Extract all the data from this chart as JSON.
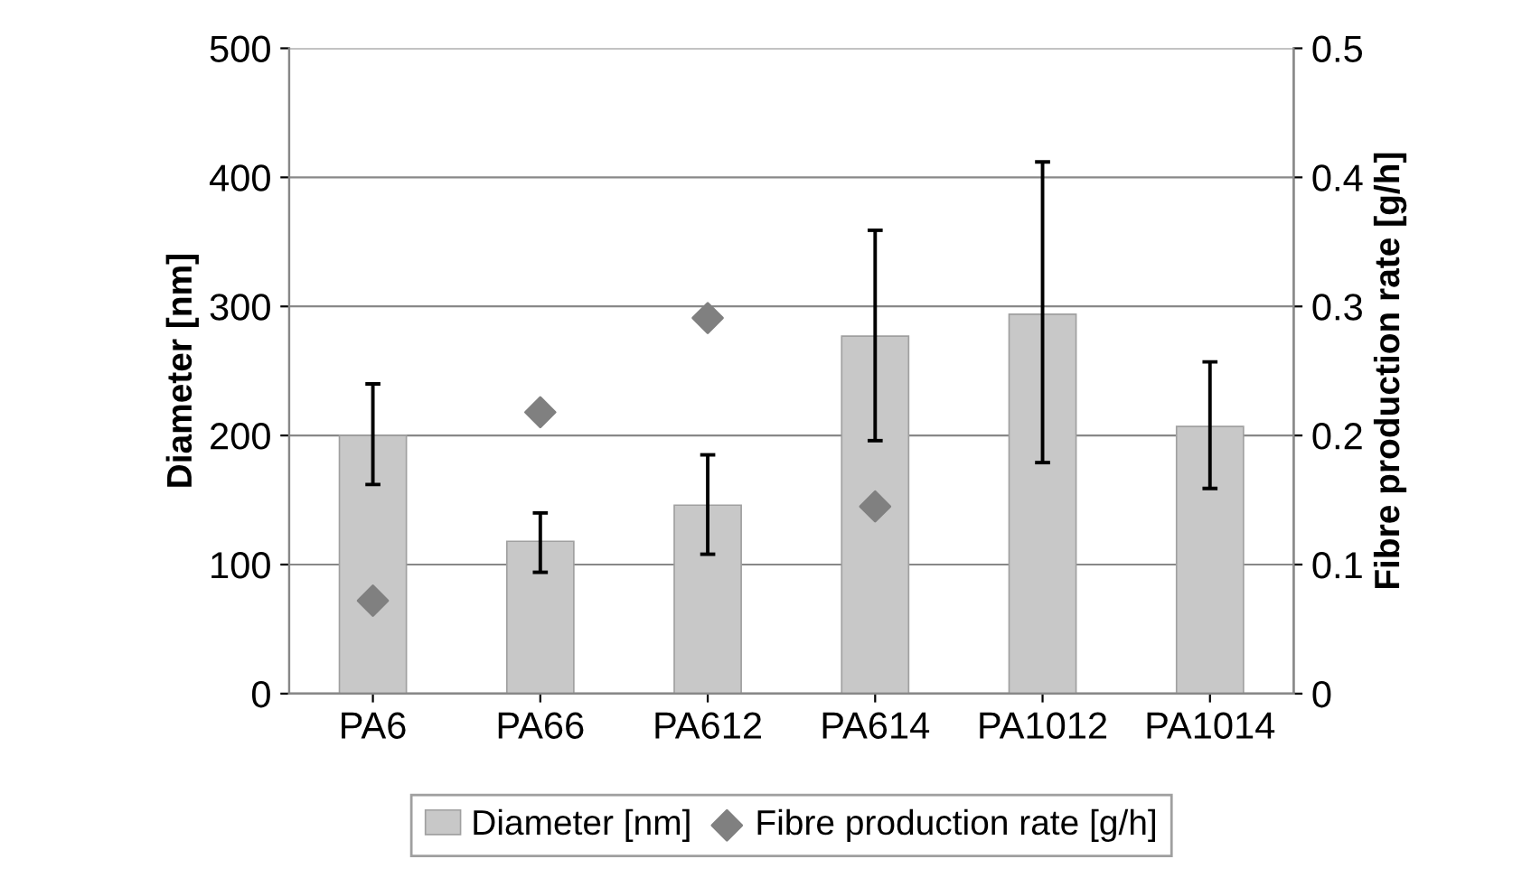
{
  "chart_data": {
    "type": "bar",
    "ylabel": "Diameter [nm]",
    "y2label": "Fibre production rate [g/h]",
    "categories": [
      "PA6",
      "PA66",
      "PA612",
      "PA614",
      "PA1012",
      "PA1014"
    ],
    "series": [
      {
        "name": "Diameter [nm]",
        "color": "#c8c8c8",
        "values": [
          200,
          118,
          146,
          277,
          294,
          207
        ],
        "errors": [
          [
            162,
            240
          ],
          [
            94,
            140
          ],
          [
            108,
            185
          ],
          [
            196,
            359
          ],
          [
            179,
            412
          ],
          [
            159,
            257
          ]
        ]
      },
      {
        "name": "Fibre production rate [g/h]",
        "type": "scatter",
        "axis": "y2",
        "color": "#808080",
        "marker": "diamond",
        "values": [
          0.072,
          0.218,
          0.291,
          0.145,
          null,
          null
        ]
      }
    ],
    "ylim": [
      0,
      500
    ],
    "yticks": [
      0,
      100,
      200,
      300,
      400,
      500
    ],
    "y2lim": [
      0,
      0.5
    ],
    "y2ticks": [
      0,
      0.1,
      0.2,
      0.3,
      0.4,
      0.5
    ],
    "grid": "y",
    "legend": "bottom"
  }
}
